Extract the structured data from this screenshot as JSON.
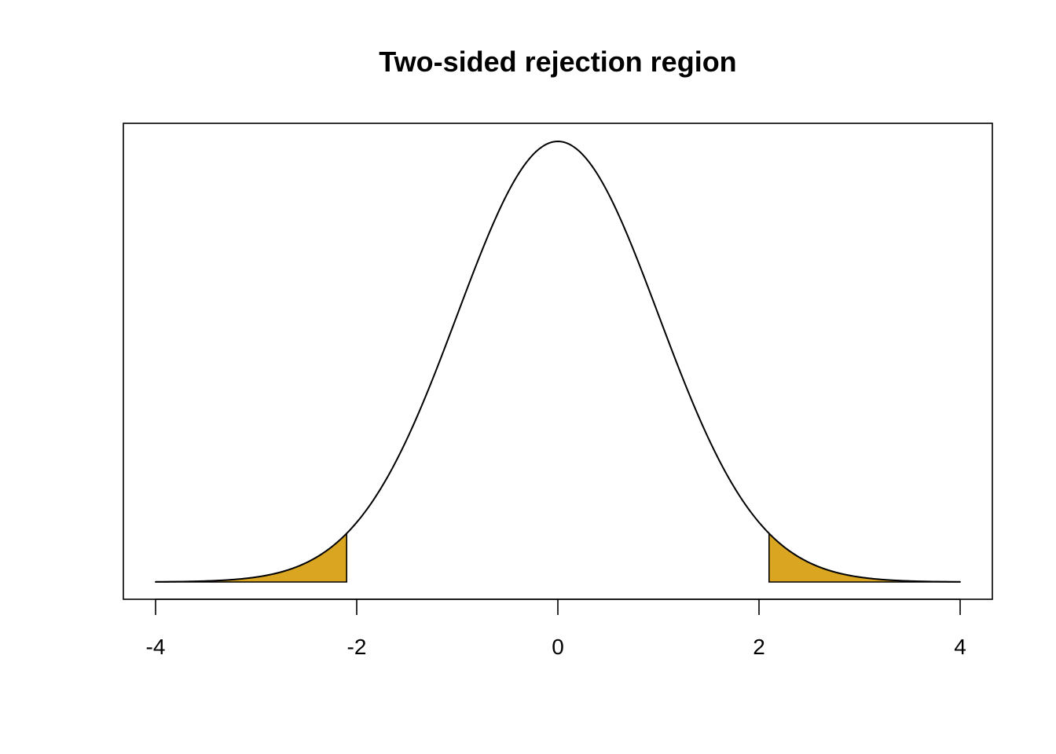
{
  "chart_data": {
    "type": "area",
    "title": "Two-sided rejection region",
    "xlabel": "",
    "ylabel": "",
    "distribution": "normal density curve, mean 0, sd 1",
    "xlim": [
      -4,
      4
    ],
    "x_ticks": [
      -4,
      -2,
      0,
      2,
      4
    ],
    "x_tick_labels": [
      "-4",
      "-2",
      "0",
      "2",
      "4"
    ],
    "y_axis_shown": false,
    "grid": false,
    "legend": "none",
    "rejection_regions": [
      {
        "from": -4,
        "to": -2.1
      },
      {
        "from": 2.1,
        "to": 4
      }
    ],
    "colors": {
      "rejection_fill": "#DAA520",
      "curve": "#000000",
      "frame": "#000000"
    }
  }
}
